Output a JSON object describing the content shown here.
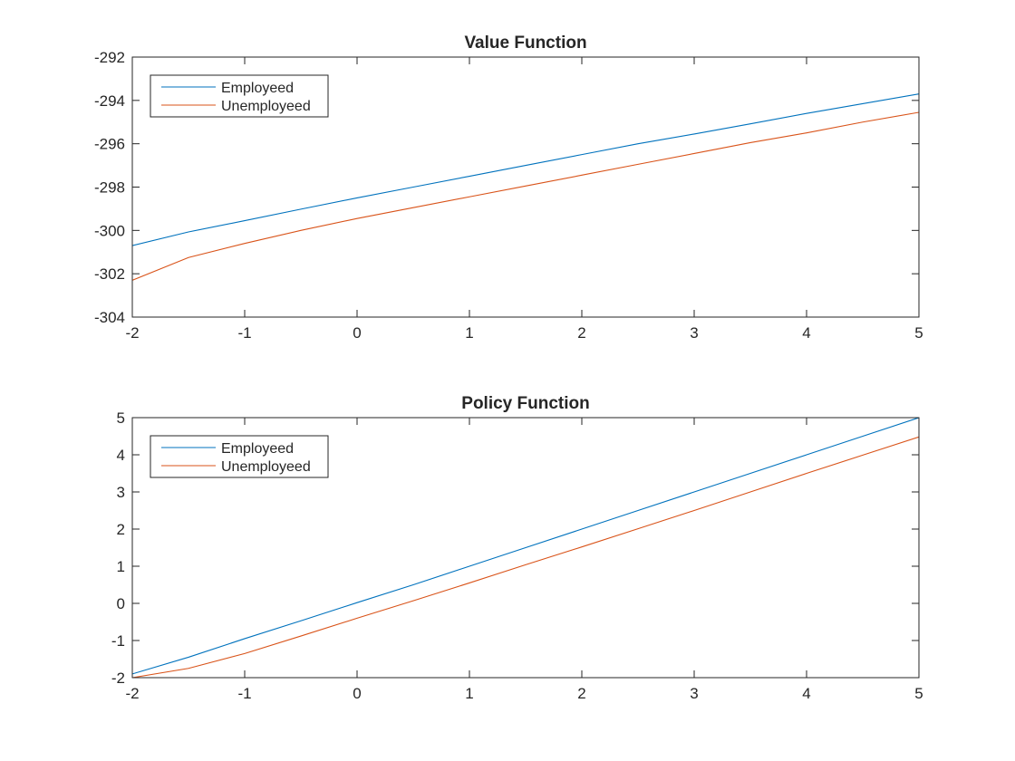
{
  "colors": {
    "employed": "#0072BD",
    "unemployed": "#D95319",
    "axis": "#262626",
    "background": "#ffffff"
  },
  "chart_data": [
    {
      "type": "line",
      "title": "Value Function",
      "xlabel": "",
      "ylabel": "",
      "xlim": [
        -2,
        5
      ],
      "ylim": [
        -304,
        -292
      ],
      "xticks": [
        -2,
        -1,
        0,
        1,
        2,
        3,
        4,
        5
      ],
      "yticks": [
        -304,
        -302,
        -300,
        -298,
        -296,
        -294,
        -292
      ],
      "xtick_labels": [
        "-2",
        "-1",
        "0",
        "1",
        "2",
        "3",
        "4",
        "5"
      ],
      "ytick_labels": [
        "-304",
        "-302",
        "-300",
        "-298",
        "-296",
        "-294",
        "-292"
      ],
      "grid": false,
      "legend_position": "top-left",
      "x": [
        -2,
        -1.5,
        -1,
        -0.5,
        0,
        0.5,
        1,
        1.5,
        2,
        2.5,
        3,
        3.5,
        4,
        4.5,
        5
      ],
      "series": [
        {
          "name": "Employeed",
          "color_key": "employed",
          "values": [
            -300.7,
            -300.07,
            -299.55,
            -299.02,
            -298.5,
            -298.0,
            -297.5,
            -297.0,
            -296.5,
            -296.0,
            -295.55,
            -295.08,
            -294.6,
            -294.15,
            -293.7
          ]
        },
        {
          "name": "Unemployeed",
          "color_key": "unemployed",
          "values": [
            -302.3,
            -301.25,
            -300.6,
            -300.0,
            -299.45,
            -298.95,
            -298.45,
            -297.95,
            -297.45,
            -296.95,
            -296.45,
            -295.95,
            -295.5,
            -295.0,
            -294.55
          ]
        }
      ]
    },
    {
      "type": "line",
      "title": "Policy Function",
      "xlabel": "",
      "ylabel": "",
      "xlim": [
        -2,
        5
      ],
      "ylim": [
        -2,
        5
      ],
      "xticks": [
        -2,
        -1,
        0,
        1,
        2,
        3,
        4,
        5
      ],
      "yticks": [
        -2,
        -1,
        0,
        1,
        2,
        3,
        4,
        5
      ],
      "xtick_labels": [
        "-2",
        "-1",
        "0",
        "1",
        "2",
        "3",
        "4",
        "5"
      ],
      "ytick_labels": [
        "-2",
        "-1",
        "0",
        "1",
        "2",
        "3",
        "4",
        "5"
      ],
      "grid": false,
      "legend_position": "top-left",
      "x": [
        -2,
        -1.5,
        -1,
        -0.5,
        0,
        0.5,
        1,
        1.5,
        2,
        2.5,
        3,
        3.5,
        4,
        4.5,
        5
      ],
      "series": [
        {
          "name": "Employeed",
          "color_key": "employed",
          "values": [
            -1.9,
            -1.45,
            -0.95,
            -0.47,
            0.02,
            0.5,
            1.0,
            1.5,
            2.0,
            2.5,
            3.0,
            3.5,
            4.0,
            4.5,
            5.0
          ]
        },
        {
          "name": "Unemployeed",
          "color_key": "unemployed",
          "values": [
            -2.0,
            -1.75,
            -1.35,
            -0.88,
            -0.4,
            0.07,
            0.55,
            1.04,
            1.52,
            2.01,
            2.5,
            3.0,
            3.5,
            3.99,
            4.48
          ]
        }
      ]
    }
  ]
}
